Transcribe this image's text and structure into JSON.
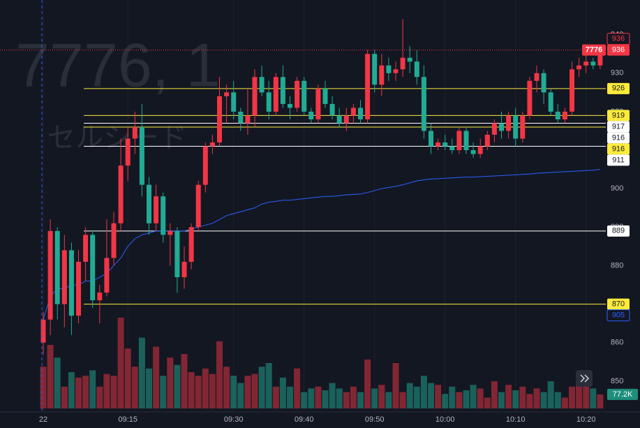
{
  "chart_data": {
    "type": "candlestick",
    "symbol": "7776",
    "watermark": [
      "7776, 1",
      "セルシード"
    ],
    "categories": [
      "22",
      null,
      null,
      null,
      null,
      null,
      null,
      null,
      null,
      null,
      null,
      null,
      "09:15",
      null,
      null,
      null,
      null,
      null,
      null,
      null,
      null,
      null,
      null,
      null,
      null,
      null,
      null,
      "09:30",
      null,
      null,
      null,
      null,
      null,
      null,
      null,
      null,
      null,
      "09:40",
      null,
      null,
      null,
      null,
      null,
      null,
      null,
      null,
      null,
      "09:50",
      null,
      null,
      null,
      null,
      null,
      null,
      null,
      null,
      null,
      "10:00",
      null,
      null,
      null,
      null,
      null,
      null,
      null,
      null,
      null,
      "10:10",
      null,
      null,
      null,
      null,
      null,
      null,
      null,
      null,
      null,
      "10:20",
      null,
      null
    ],
    "open": [
      860,
      866,
      889,
      870,
      884,
      867,
      881,
      888,
      871,
      873,
      882,
      891,
      906,
      913,
      916,
      901,
      891,
      898,
      888,
      889,
      877,
      881,
      890,
      901,
      911,
      912,
      924,
      925,
      920,
      917,
      919,
      929,
      925,
      920,
      929,
      922,
      921,
      928,
      920,
      918,
      926,
      922,
      919,
      917,
      919,
      921,
      918,
      935,
      927,
      932,
      930,
      931,
      934,
      933,
      929,
      915,
      911,
      912,
      911,
      910,
      915,
      910,
      909,
      911,
      914,
      917,
      915,
      919,
      913,
      919,
      928,
      930,
      925,
      920,
      918,
      920,
      931,
      932,
      933,
      932
    ],
    "high": [
      868,
      892,
      890,
      888,
      886,
      884,
      890,
      889,
      875,
      892,
      894,
      913,
      916,
      920,
      922,
      903,
      901,
      899,
      891,
      890,
      885,
      891,
      902,
      912,
      914,
      929,
      927,
      928,
      921,
      926,
      931,
      932,
      928,
      930,
      932,
      924,
      929,
      929,
      921,
      927,
      928,
      924,
      921,
      921,
      922,
      923,
      936,
      936,
      935,
      934,
      933,
      944,
      937,
      936,
      932,
      917,
      913,
      914,
      913,
      916,
      916,
      912,
      913,
      915,
      918,
      920,
      920,
      921,
      920,
      929,
      932,
      931,
      926,
      922,
      921,
      933,
      934,
      935,
      934,
      936
    ],
    "low": [
      857,
      862,
      866,
      864,
      862,
      865,
      876,
      869,
      865,
      872,
      880,
      889,
      902,
      909,
      898,
      888,
      889,
      886,
      880,
      873,
      874,
      879,
      889,
      899,
      909,
      911,
      917,
      918,
      915,
      914,
      916,
      924,
      918,
      919,
      921,
      918,
      920,
      919,
      917,
      917,
      921,
      918,
      916,
      915,
      917,
      917,
      917,
      925,
      924,
      928,
      928,
      929,
      930,
      927,
      913,
      909,
      910,
      910,
      909,
      909,
      909,
      908,
      908,
      910,
      912,
      913,
      913,
      911,
      912,
      918,
      925,
      922,
      919,
      917,
      917,
      919,
      929,
      930,
      931,
      931
    ],
    "close": [
      866,
      889,
      870,
      884,
      867,
      881,
      888,
      871,
      873,
      882,
      891,
      906,
      913,
      916,
      901,
      891,
      898,
      888,
      889,
      877,
      881,
      890,
      901,
      911,
      912,
      924,
      925,
      920,
      917,
      919,
      929,
      925,
      920,
      929,
      922,
      921,
      928,
      920,
      918,
      926,
      922,
      919,
      917,
      919,
      921,
      918,
      935,
      927,
      932,
      930,
      931,
      934,
      933,
      929,
      915,
      911,
      912,
      911,
      910,
      915,
      910,
      909,
      911,
      914,
      917,
      915,
      919,
      913,
      919,
      928,
      930,
      925,
      920,
      918,
      920,
      931,
      932,
      933,
      932,
      936
    ],
    "up_color": "#f23645",
    "down_color": "#22ab94",
    "volume": {
      "values": [
        230,
        350,
        280,
        120,
        200,
        170,
        180,
        210,
        120,
        190,
        180,
        500,
        330,
        230,
        390,
        220,
        340,
        180,
        280,
        240,
        300,
        200,
        180,
        220,
        190,
        370,
        230,
        180,
        140,
        180,
        190,
        230,
        250,
        120,
        170,
        120,
        220,
        90,
        110,
        120,
        100,
        140,
        110,
        90,
        120,
        90,
        270,
        110,
        130,
        90,
        250,
        90,
        140,
        120,
        180,
        140,
        130,
        80,
        120,
        90,
        100,
        130,
        110,
        60,
        150,
        90,
        130,
        100,
        120,
        80,
        110,
        90,
        150,
        90,
        60,
        120,
        150,
        160,
        110,
        77.2
      ],
      "value_labels": [
        null,
        null,
        null,
        null,
        null,
        null,
        null,
        null,
        null,
        null,
        null,
        null,
        null,
        null,
        null,
        null,
        null,
        null,
        null,
        null,
        null,
        null,
        null,
        null,
        null,
        null,
        null,
        null,
        null,
        null,
        null,
        null,
        null,
        null,
        null,
        null,
        null,
        null,
        null,
        null,
        null,
        null,
        null,
        null,
        null,
        null,
        null,
        null,
        null,
        null,
        null,
        null,
        null,
        null,
        null,
        null,
        null,
        null,
        null,
        null,
        null,
        null,
        null,
        null,
        null,
        null,
        null,
        null,
        null,
        null,
        null,
        null,
        null,
        null,
        null,
        null,
        null,
        null,
        null,
        "77.2K"
      ],
      "ylim": [
        0,
        600
      ]
    },
    "vwap": {
      "color": "#2962ff",
      "values": [
        866,
        872,
        874,
        874,
        875,
        875,
        876,
        876,
        877,
        878,
        880,
        882,
        885,
        887,
        888,
        888.5,
        889,
        889,
        889,
        889,
        889,
        889.5,
        890,
        890.5,
        891,
        892,
        893,
        893.5,
        894,
        894.5,
        895,
        896,
        896.5,
        896.7,
        897,
        897,
        897.2,
        897.4,
        897.6,
        897.8,
        898,
        898,
        898.2,
        898.4,
        898.5,
        898.6,
        899,
        899.5,
        900,
        900.3,
        900.6,
        901,
        901.5,
        902,
        902.3,
        902.5,
        902.6,
        902.7,
        902.8,
        902.9,
        903,
        903,
        903.1,
        903.2,
        903.3,
        903.4,
        903.5,
        903.6,
        903.7,
        903.8,
        904,
        904.1,
        904.2,
        904.3,
        904.4,
        904.5,
        904.6,
        904.7,
        904.8,
        905
      ]
    },
    "levels": [
      {
        "value": 936,
        "color": "#f23645",
        "box": "outline"
      },
      {
        "value": 926,
        "color": "#ffeb3b",
        "box": "filled"
      },
      {
        "value": 919,
        "color": "#ffeb3b",
        "box": "filled"
      },
      {
        "value": 917,
        "color": "#ffffff",
        "box": "filled"
      },
      {
        "value": 916,
        "color": "#ffffff",
        "box": "filled"
      },
      {
        "value": 916,
        "color": "#ffeb3b",
        "box": "filled"
      },
      {
        "value": 911,
        "color": "#ffffff",
        "box": "filled"
      },
      {
        "value": 889,
        "color": "#ffffff",
        "box": "filled"
      },
      {
        "value": 870,
        "color": "#ffeb3b",
        "box": "filled"
      }
    ],
    "ylim": [
      842,
      949
    ],
    "yticks": [
      850,
      860,
      870,
      880,
      890,
      900,
      910,
      920,
      930,
      940
    ],
    "grid": true
  }
}
